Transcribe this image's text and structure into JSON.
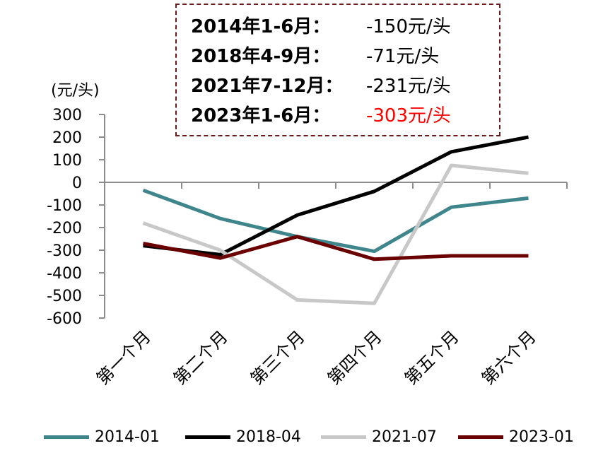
{
  "chart_data": {
    "type": "line",
    "ylabel": "(元/头)",
    "ylim": [
      -600,
      300
    ],
    "yticks": [
      300,
      200,
      100,
      0,
      -100,
      -200,
      -300,
      -400,
      -500,
      -600
    ],
    "categories": [
      "第一个月",
      "第二个月",
      "第三个月",
      "第四个月",
      "第五个月",
      "第六个月"
    ],
    "series": [
      {
        "name": "2014-01",
        "color": "#3f858c",
        "values": [
          -35,
          -160,
          -240,
          -305,
          -110,
          -70
        ]
      },
      {
        "name": "2018-04",
        "color": "#000000",
        "values": [
          -280,
          -320,
          -145,
          -40,
          135,
          200
        ]
      },
      {
        "name": "2021-07",
        "color": "#c8c8c8",
        "values": [
          -180,
          -300,
          -520,
          -535,
          75,
          40
        ]
      },
      {
        "name": "2023-01",
        "color": "#6b0000",
        "values": [
          -270,
          -335,
          -240,
          -340,
          -325,
          -325
        ]
      }
    ],
    "grid": false,
    "legend_position": "bottom",
    "annotation": [
      {
        "period": "2014年1-6月：",
        "value": "-150元/头",
        "color": "#000000"
      },
      {
        "period": "2018年4-9月：",
        "value": "-71元/头",
        "color": "#000000"
      },
      {
        "period": "2021年7-12月：",
        "value": "-231元/头",
        "color": "#000000"
      },
      {
        "period": "2023年1-6月：",
        "value": "-303元/头",
        "color": "#ff0000"
      }
    ]
  }
}
